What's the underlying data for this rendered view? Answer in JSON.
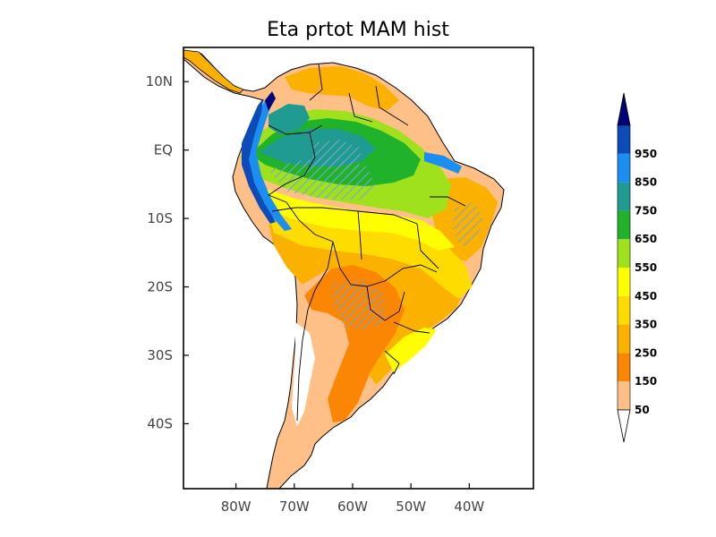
{
  "title": "Eta  prtot MAM hist",
  "map": {
    "lat_labels": [
      "10N",
      "EQ",
      "10S",
      "20S",
      "30S",
      "40S"
    ],
    "lon_labels": [
      "80W",
      "70W",
      "60W",
      "50W",
      "40W"
    ],
    "lat_values": [
      10,
      0,
      -10,
      -20,
      -30,
      -40
    ],
    "lon_values": [
      -80,
      -70,
      -60,
      -50,
      -40
    ],
    "extent": {
      "lon_min": -89,
      "lon_max": -29,
      "lat_min": -49.5,
      "lat_max": 15
    },
    "ocean_color": "#ffffff",
    "hatch_color": "#7aa7c7"
  },
  "colorbar": {
    "labels": [
      "50",
      "150",
      "250",
      "350",
      "450",
      "550",
      "650",
      "750",
      "850",
      "950"
    ],
    "colors": [
      "#fec087",
      "#fb8604",
      "#fbb100",
      "#fedc00",
      "#fefe00",
      "#9fe11d",
      "#21b22b",
      "#1f9b92",
      "#1b8ef2",
      "#0d4bb9"
    ],
    "under_color": "#ffffff",
    "over_color": "#00007a"
  }
}
